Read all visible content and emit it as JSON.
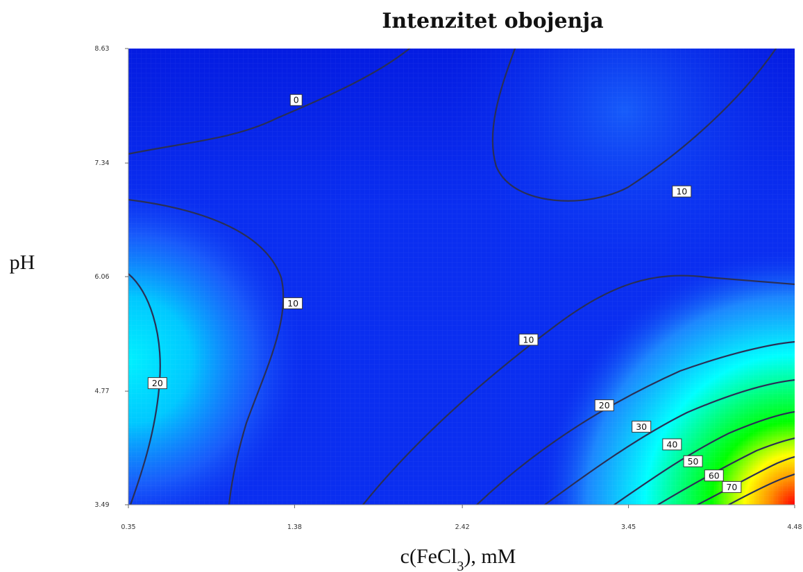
{
  "chart_data": {
    "type": "heatmap",
    "subtype": "contour",
    "title": "Intenzitet obojenja",
    "xlabel": "c(FeCl3), mM",
    "ylabel": "pH",
    "xlim": [
      0.35,
      4.48
    ],
    "ylim": [
      3.49,
      8.63
    ],
    "x_ticks": [
      "0.35",
      "1.38",
      "2.42",
      "3.45",
      "4.48"
    ],
    "y_ticks": [
      "3.49",
      "4.77",
      "6.06",
      "7.34",
      "8.63"
    ],
    "colormap": [
      "#0000ff",
      "#00e5ff",
      "#00ff00",
      "#ffff00",
      "#ff0000"
    ],
    "grid": false,
    "contour_labels": [
      {
        "text": "0",
        "x": 1.39,
        "y": 8.05
      },
      {
        "text": "10",
        "x": 3.78,
        "y": 7.02
      },
      {
        "text": "10",
        "x": 1.37,
        "y": 5.76
      },
      {
        "text": "10",
        "x": 2.83,
        "y": 5.35
      },
      {
        "text": "20",
        "x": 0.53,
        "y": 4.86
      },
      {
        "text": "20",
        "x": 3.3,
        "y": 4.61
      },
      {
        "text": "30",
        "x": 3.53,
        "y": 4.37
      },
      {
        "text": "40",
        "x": 3.72,
        "y": 4.17
      },
      {
        "text": "50",
        "x": 3.85,
        "y": 3.98
      },
      {
        "text": "60",
        "x": 3.98,
        "y": 3.82
      },
      {
        "text": "70",
        "x": 4.09,
        "y": 3.69
      }
    ]
  }
}
